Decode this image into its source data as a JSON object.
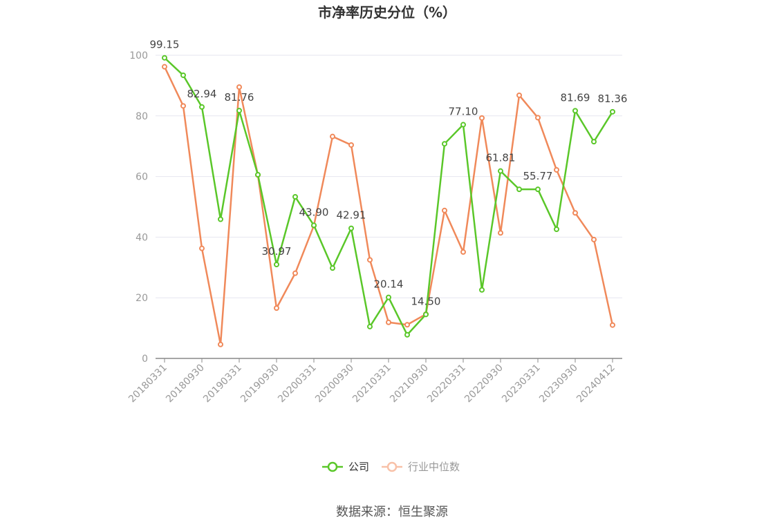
{
  "chart_data": {
    "type": "line",
    "title": "市净率历史分位（%）",
    "ylim": [
      0,
      100
    ],
    "y_ticks": [
      "0",
      "20",
      "40",
      "60",
      "80",
      "100"
    ],
    "x_tick_labels": [
      "20180331",
      "20180930",
      "20190331",
      "20190930",
      "20200331",
      "20200930",
      "20210331",
      "20210930",
      "20220331",
      "20220930",
      "20230331",
      "20230930",
      "20240412"
    ],
    "grid": true,
    "legend_position": "bottom-center",
    "series": [
      {
        "name": "公司",
        "color": "#5ac729",
        "values": [
          99.15,
          93.4,
          82.94,
          45.9,
          81.76,
          60.6,
          30.97,
          53.3,
          43.9,
          29.8,
          42.91,
          10.5,
          20.14,
          7.8,
          14.5,
          70.8,
          77.1,
          22.6,
          61.81,
          55.77,
          55.77,
          42.6,
          81.69,
          71.5,
          81.36
        ],
        "labels": [
          "99.15",
          "",
          "82.94",
          "",
          "81.76",
          "",
          "30.97",
          "",
          "43.90",
          "",
          "42.91",
          "",
          "20.14",
          "",
          "14.50",
          "",
          "77.10",
          "",
          "61.81",
          "",
          "55.77",
          "",
          "81.69",
          "",
          "81.36"
        ]
      },
      {
        "name": "行业中位数",
        "color": "#f0895a",
        "values": [
          96.2,
          83.3,
          36.3,
          4.6,
          89.5,
          60.5,
          16.6,
          28.1,
          43.8,
          73.2,
          70.4,
          32.5,
          11.9,
          11.1,
          14.6,
          48.8,
          35.1,
          79.3,
          41.4,
          86.8,
          79.4,
          62.2,
          48.0,
          39.2,
          11.0
        ]
      }
    ]
  },
  "source_text": "数据来源：恒生聚源"
}
